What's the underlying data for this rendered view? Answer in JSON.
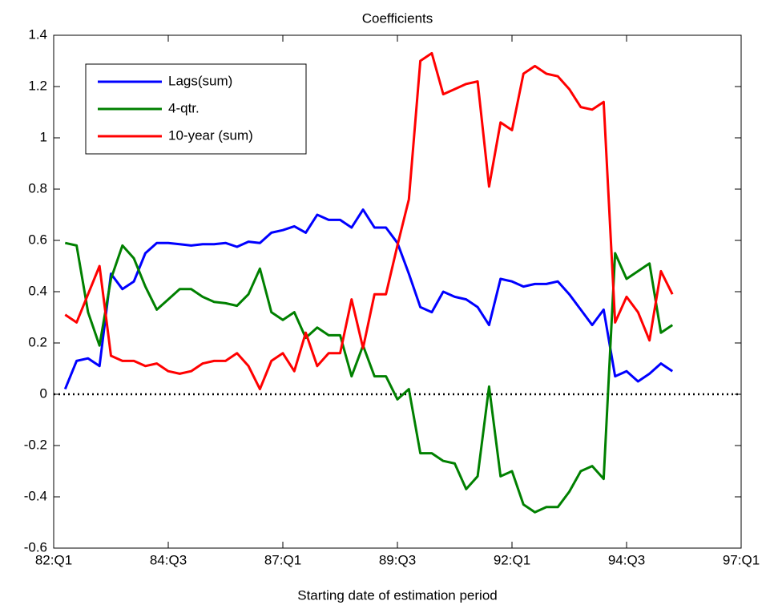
{
  "chart_data": {
    "type": "line",
    "title": "Coefficients",
    "x_label": "Starting date of estimation period",
    "x": [
      1,
      2,
      3,
      4,
      5,
      6,
      7,
      8,
      9,
      10,
      11,
      12,
      13,
      14,
      15,
      16,
      17,
      18,
      19,
      20,
      21,
      22,
      23,
      24,
      25,
      26,
      27,
      28,
      29,
      30,
      31,
      32,
      33,
      34,
      35,
      36,
      37,
      38,
      39,
      40,
      41,
      42,
      43,
      44,
      45,
      46,
      47,
      48,
      49,
      50,
      51,
      52,
      53,
      54
    ],
    "xlim": [
      0,
      60
    ],
    "xticks": [
      {
        "value": 0,
        "label": "82:Q1"
      },
      {
        "value": 10,
        "label": "84:Q3"
      },
      {
        "value": 20,
        "label": "87:Q1"
      },
      {
        "value": 30,
        "label": "89:Q3"
      },
      {
        "value": 40,
        "label": "92:Q1"
      },
      {
        "value": 50,
        "label": "94:Q3"
      },
      {
        "value": 60,
        "label": "97:Q1"
      }
    ],
    "ylim": [
      -0.6,
      1.4
    ],
    "yticks": [
      -0.6,
      -0.4,
      -0.2,
      0,
      0.2,
      0.4,
      0.6,
      0.8,
      1,
      1.2,
      1.4
    ],
    "hlines": [
      0
    ],
    "grid": false,
    "legend": "upper left",
    "series": [
      {
        "name": "Lags(sum)",
        "color": "#0000ff",
        "values": [
          0.02,
          0.13,
          0.14,
          0.11,
          0.47,
          0.41,
          0.44,
          0.55,
          0.59,
          0.59,
          0.585,
          0.58,
          0.585,
          0.585,
          0.59,
          0.575,
          0.595,
          0.59,
          0.63,
          0.64,
          0.655,
          0.63,
          0.7,
          0.68,
          0.68,
          0.65,
          0.72,
          0.65,
          0.65,
          0.59,
          0.47,
          0.34,
          0.32,
          0.4,
          0.38,
          0.37,
          0.34,
          0.27,
          0.45,
          0.44,
          0.42,
          0.43,
          0.43,
          0.44,
          0.39,
          0.33,
          0.27,
          0.33,
          0.07,
          0.09,
          0.05,
          0.08,
          0.12,
          0.09
        ]
      },
      {
        "name": "4-qtr.",
        "color": "#008000",
        "values": [
          0.59,
          0.58,
          0.32,
          0.19,
          0.45,
          0.58,
          0.53,
          0.42,
          0.33,
          0.37,
          0.41,
          0.41,
          0.38,
          0.36,
          0.355,
          0.345,
          0.39,
          0.49,
          0.32,
          0.29,
          0.32,
          0.22,
          0.26,
          0.23,
          0.23,
          0.07,
          0.19,
          0.07,
          0.07,
          -0.02,
          0.02,
          -0.23,
          -0.23,
          -0.26,
          -0.27,
          -0.37,
          -0.32,
          0.03,
          -0.32,
          -0.3,
          -0.43,
          -0.46,
          -0.44,
          -0.44,
          -0.38,
          -0.3,
          -0.28,
          -0.33,
          0.55,
          0.45,
          0.48,
          0.51,
          0.24,
          0.27
        ]
      },
      {
        "name": "10-year (sum)",
        "color": "#ff0000",
        "values": [
          0.31,
          0.28,
          0.39,
          0.5,
          0.15,
          0.13,
          0.13,
          0.11,
          0.12,
          0.09,
          0.08,
          0.09,
          0.12,
          0.13,
          0.13,
          0.16,
          0.11,
          0.02,
          0.13,
          0.16,
          0.09,
          0.24,
          0.11,
          0.16,
          0.16,
          0.37,
          0.18,
          0.39,
          0.39,
          0.58,
          0.76,
          1.3,
          1.33,
          1.17,
          1.19,
          1.21,
          1.22,
          0.81,
          1.06,
          1.03,
          1.25,
          1.28,
          1.25,
          1.24,
          1.19,
          1.12,
          1.11,
          1.14,
          0.28,
          0.38,
          0.32,
          0.21,
          0.48,
          0.39
        ]
      }
    ]
  }
}
